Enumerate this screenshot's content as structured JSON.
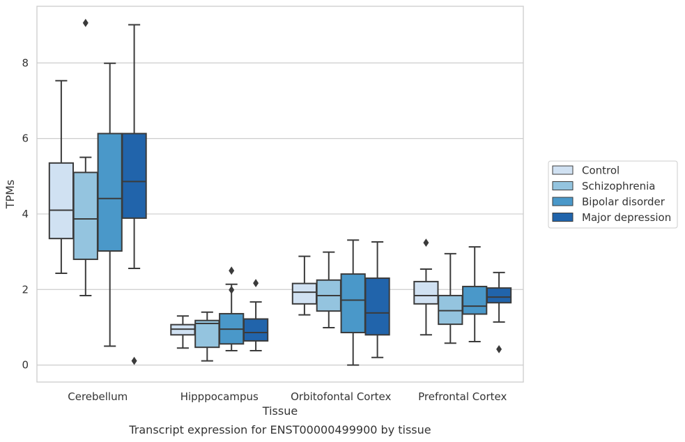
{
  "chart_data": {
    "type": "box",
    "caption": "Transcript expression for ENST00000499900 by tissue",
    "xlabel": "Tissue",
    "ylabel": "TPMs",
    "ylim": [
      -0.45,
      9.5
    ],
    "yticks": [
      0,
      2,
      4,
      6,
      8
    ],
    "grid": "horizontal",
    "legend_position": "right",
    "categories": [
      "Cerebellum",
      "Hipppocampus",
      "Orbitofontal Cortex",
      "Prefrontal Cortex"
    ],
    "series": [
      {
        "name": "Control",
        "color": "#d0e1f2",
        "boxes": [
          {
            "whisker_low": 2.43,
            "q1": 3.35,
            "median": 4.1,
            "q3": 5.35,
            "whisker_high": 7.53,
            "outliers": []
          },
          {
            "whisker_low": 0.45,
            "q1": 0.8,
            "median": 0.95,
            "q3": 1.07,
            "whisker_high": 1.3,
            "outliers": []
          },
          {
            "whisker_low": 1.33,
            "q1": 1.62,
            "median": 1.93,
            "q3": 2.16,
            "whisker_high": 2.88,
            "outliers": []
          },
          {
            "whisker_low": 0.8,
            "q1": 1.62,
            "median": 1.84,
            "q3": 2.21,
            "whisker_high": 2.54,
            "outliers": [
              3.24
            ]
          }
        ]
      },
      {
        "name": "Schizophrenia",
        "color": "#94c4df",
        "boxes": [
          {
            "whisker_low": 1.84,
            "q1": 2.8,
            "median": 3.87,
            "q3": 5.1,
            "whisker_high": 5.5,
            "outliers": [
              9.06
            ]
          },
          {
            "whisker_low": 0.11,
            "q1": 0.47,
            "median": 1.1,
            "q3": 1.18,
            "whisker_high": 1.4,
            "outliers": []
          },
          {
            "whisker_low": 0.99,
            "q1": 1.43,
            "median": 1.84,
            "q3": 2.25,
            "whisker_high": 2.99,
            "outliers": []
          },
          {
            "whisker_low": 0.58,
            "q1": 1.08,
            "median": 1.44,
            "q3": 1.84,
            "whisker_high": 2.95,
            "outliers": []
          }
        ]
      },
      {
        "name": "Bipolar disorder",
        "color": "#4a98c9",
        "boxes": [
          {
            "whisker_low": 0.5,
            "q1": 3.02,
            "median": 4.41,
            "q3": 6.13,
            "whisker_high": 7.99,
            "outliers": []
          },
          {
            "whisker_low": 0.38,
            "q1": 0.56,
            "median": 0.95,
            "q3": 1.36,
            "whisker_high": 2.14,
            "outliers": [
              2.5,
              1.99
            ]
          },
          {
            "whisker_low": 0.0,
            "q1": 0.86,
            "median": 1.72,
            "q3": 2.41,
            "whisker_high": 3.31,
            "outliers": []
          },
          {
            "whisker_low": 0.62,
            "q1": 1.35,
            "median": 1.56,
            "q3": 2.08,
            "whisker_high": 3.13,
            "outliers": []
          }
        ]
      },
      {
        "name": "Major depression",
        "color": "#2164ab",
        "boxes": [
          {
            "whisker_low": 2.56,
            "q1": 3.89,
            "median": 4.86,
            "q3": 6.13,
            "whisker_high": 9.01,
            "outliers": [
              0.11
            ]
          },
          {
            "whisker_low": 0.38,
            "q1": 0.64,
            "median": 0.86,
            "q3": 1.22,
            "whisker_high": 1.67,
            "outliers": [
              2.17
            ]
          },
          {
            "whisker_low": 0.2,
            "q1": 0.8,
            "median": 1.38,
            "q3": 2.3,
            "whisker_high": 3.26,
            "outliers": []
          },
          {
            "whisker_low": 1.14,
            "q1": 1.65,
            "median": 1.8,
            "q3": 2.04,
            "whisker_high": 2.45,
            "outliers": [
              0.42
            ]
          }
        ]
      }
    ]
  }
}
